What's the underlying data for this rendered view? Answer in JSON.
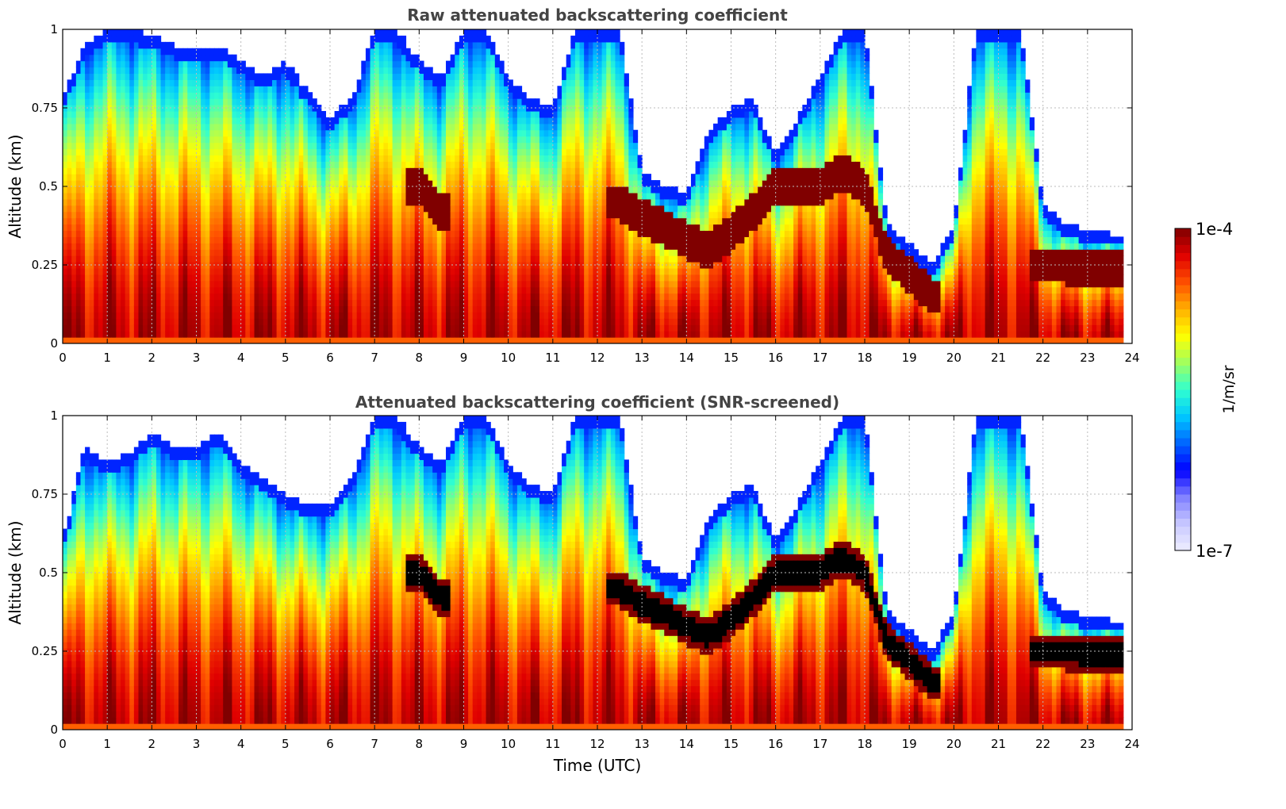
{
  "chart_data": [
    {
      "type": "heatmap",
      "title": "Raw attenuated backscattering coefficient",
      "xlabel": "",
      "ylabel": "Altitude (km)",
      "xlim": [
        0,
        24
      ],
      "ylim": [
        0,
        1
      ],
      "x_ticks": [
        "0",
        "1",
        "2",
        "3",
        "4",
        "5",
        "6",
        "7",
        "8",
        "9",
        "10",
        "11",
        "12",
        "13",
        "14",
        "15",
        "16",
        "17",
        "18",
        "19",
        "20",
        "21",
        "22",
        "23",
        "24"
      ],
      "y_ticks": [
        "0",
        "0.25",
        "0.5",
        "0.75",
        "1"
      ],
      "grid": true,
      "screened": false,
      "colorbar_scale": "log",
      "colorbar_range": [
        1e-07,
        0.0001
      ],
      "time_hours": [
        0,
        0.5,
        1,
        1.5,
        2,
        2.5,
        3,
        3.5,
        4,
        4.5,
        5,
        5.5,
        6,
        6.5,
        7,
        7.5,
        8,
        8.5,
        9,
        9.5,
        10,
        10.5,
        11,
        11.5,
        12,
        12.5,
        13,
        13.5,
        14,
        14.5,
        15,
        15.5,
        16,
        16.5,
        17,
        17.5,
        18,
        18.5,
        19,
        19.5,
        20,
        20.5,
        21,
        21.5,
        22,
        22.5,
        23,
        23.5,
        23.8
      ],
      "signal_top_km": [
        0.78,
        0.95,
        1.0,
        1.0,
        0.98,
        0.95,
        0.95,
        0.95,
        0.9,
        0.85,
        0.9,
        0.8,
        0.72,
        0.78,
        1.0,
        1.0,
        0.9,
        0.85,
        1.0,
        1.0,
        0.85,
        0.78,
        0.75,
        1.0,
        1.0,
        1.0,
        0.55,
        0.5,
        0.48,
        0.68,
        0.75,
        0.78,
        0.6,
        0.72,
        0.85,
        1.0,
        1.0,
        0.38,
        0.32,
        0.25,
        0.38,
        1.0,
        1.0,
        1.0,
        0.45,
        0.38,
        0.36,
        0.35,
        0.35
      ],
      "strong_layer_km": [
        null,
        null,
        null,
        null,
        null,
        null,
        null,
        null,
        null,
        null,
        null,
        null,
        null,
        null,
        null,
        null,
        0.5,
        0.42,
        null,
        null,
        null,
        null,
        null,
        null,
        null,
        0.45,
        0.4,
        0.37,
        0.33,
        0.3,
        0.35,
        0.42,
        0.5,
        0.5,
        0.5,
        0.55,
        0.5,
        0.28,
        0.22,
        0.15,
        null,
        null,
        null,
        null,
        0.25,
        0.25,
        0.24,
        0.24,
        0.24
      ]
    },
    {
      "type": "heatmap",
      "title": "Attenuated backscattering coefficient (SNR-screened)",
      "xlabel": "Time (UTC)",
      "ylabel": "Altitude (km)",
      "xlim": [
        0,
        24
      ],
      "ylim": [
        0,
        1
      ],
      "x_ticks": [
        "0",
        "1",
        "2",
        "3",
        "4",
        "5",
        "6",
        "7",
        "8",
        "9",
        "10",
        "11",
        "12",
        "13",
        "14",
        "15",
        "16",
        "17",
        "18",
        "19",
        "20",
        "21",
        "22",
        "23",
        "24"
      ],
      "y_ticks": [
        "0",
        "0.25",
        "0.5",
        "0.75",
        "1"
      ],
      "grid": true,
      "screened": true,
      "colorbar_scale": "log",
      "colorbar_range": [
        1e-07,
        0.0001
      ],
      "time_hours": [
        0,
        0.5,
        1,
        1.5,
        2,
        2.5,
        3,
        3.5,
        4,
        4.5,
        5,
        5.5,
        6,
        6.5,
        7,
        7.5,
        8,
        8.5,
        9,
        9.5,
        10,
        10.5,
        11,
        11.5,
        12,
        12.5,
        13,
        13.5,
        14,
        14.5,
        15,
        15.5,
        16,
        16.5,
        17,
        17.5,
        18,
        18.5,
        19,
        19.5,
        20,
        20.5,
        21,
        21.5,
        22,
        22.5,
        23,
        23.5,
        23.8
      ],
      "signal_top_km": [
        0.6,
        0.9,
        0.85,
        0.88,
        0.95,
        0.9,
        0.9,
        0.95,
        0.85,
        0.8,
        0.75,
        0.72,
        0.72,
        0.8,
        1.0,
        1.0,
        0.9,
        0.85,
        1.0,
        1.0,
        0.85,
        0.78,
        0.75,
        1.0,
        1.0,
        1.0,
        0.55,
        0.5,
        0.48,
        0.68,
        0.75,
        0.78,
        0.6,
        0.72,
        0.85,
        1.0,
        1.0,
        0.38,
        0.32,
        0.25,
        0.38,
        1.0,
        1.0,
        1.0,
        0.45,
        0.38,
        0.36,
        0.35,
        0.35
      ],
      "strong_layer_km": [
        null,
        null,
        null,
        null,
        null,
        null,
        null,
        null,
        null,
        null,
        null,
        null,
        null,
        null,
        null,
        null,
        0.5,
        0.42,
        null,
        null,
        null,
        null,
        null,
        null,
        null,
        0.45,
        0.4,
        0.37,
        0.33,
        0.3,
        0.35,
        0.42,
        0.5,
        0.5,
        0.5,
        0.55,
        0.5,
        0.28,
        0.22,
        0.15,
        null,
        null,
        null,
        null,
        0.25,
        0.25,
        0.24,
        0.24,
        0.24
      ]
    }
  ],
  "colorbar": {
    "max_label": "1e-4",
    "min_label": "1e-7",
    "label": "1/m/sr",
    "colors": [
      "#eeeeff",
      "#c8c8ff",
      "#8080ff",
      "#0000ff",
      "#0064ff",
      "#00c8ff",
      "#30ffd0",
      "#a0ff60",
      "#ffff00",
      "#ffb000",
      "#ff5000",
      "#e00000",
      "#800000"
    ]
  }
}
